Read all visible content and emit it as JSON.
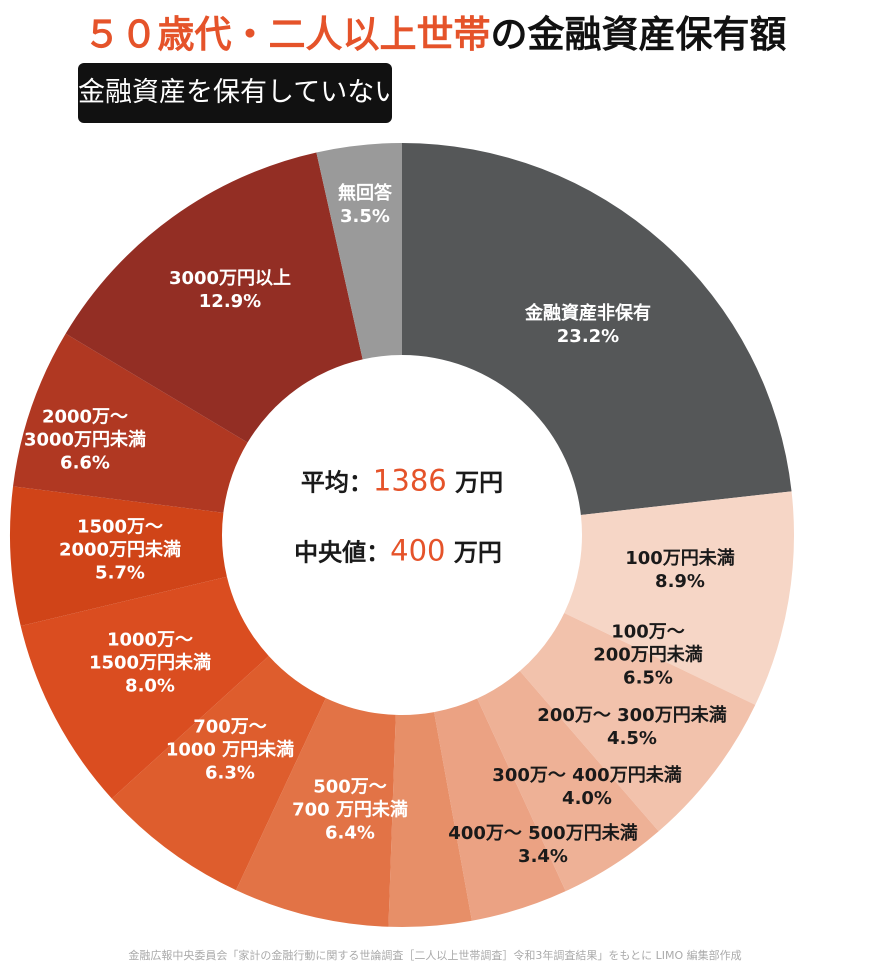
{
  "title": {
    "highlight": "５０歳代・二人以上世帯",
    "rest": "の金融資産保有額"
  },
  "subtitle": "金融資産を保有していない世帯を含む",
  "center": {
    "mean_label": "平均：",
    "mean_value": "1386",
    "mean_unit": " 万円",
    "median_label": "中央値：",
    "median_value": "400",
    "median_unit": " 万円"
  },
  "source": "金融広報中央委員会「家計の金融行動に関する世論調査［二人以上世帯調査］令和3年調査結果」をもとに LIMO 編集部作成",
  "chart_data": {
    "type": "pie",
    "donut": true,
    "start": "top",
    "direction": "clockwise",
    "unit": "%",
    "categories": [
      "金融資産非保有",
      "100万円未満",
      "100万～200万円未満",
      "200万～300万円未満",
      "300万～400万円未満",
      "400万～500万円未満",
      "500万～700万円未満",
      "700万～1000万円未満",
      "1000万～1500万円未満",
      "1500万～2000万円未満",
      "2000万～3000万円未満",
      "3000万円以上",
      "無回答"
    ],
    "values": [
      23.2,
      8.9,
      6.5,
      4.5,
      4.0,
      3.4,
      6.4,
      6.3,
      8.0,
      5.7,
      6.6,
      12.9,
      3.5
    ],
    "slices": [
      {
        "lines": [
          "金融資産非保有"
        ],
        "pct": "23.2%",
        "color": "#555758",
        "text": "light"
      },
      {
        "lines": [
          "100万円未満"
        ],
        "pct": "8.9%",
        "color": "#f6d6c6",
        "text": "dark"
      },
      {
        "lines": [
          "100万～",
          "200万円未満"
        ],
        "pct": "6.5%",
        "color": "#f2c2ac",
        "text": "dark"
      },
      {
        "lines": [
          "200万～ 300万円未満"
        ],
        "pct": "4.5%",
        "color": "#eeb196",
        "text": "dark"
      },
      {
        "lines": [
          "300万～ 400万円未満"
        ],
        "pct": "4.0%",
        "color": "#eba283",
        "text": "dark"
      },
      {
        "lines": [
          "400万～ 500万円未満"
        ],
        "pct": "3.4%",
        "color": "#e78f68",
        "text": "dark"
      },
      {
        "lines": [
          "500万～",
          "700 万円未満"
        ],
        "pct": "6.4%",
        "color": "#e27346",
        "text": "light"
      },
      {
        "lines": [
          "700万～",
          "1000 万円未満"
        ],
        "pct": "6.3%",
        "color": "#de5d2d",
        "text": "light"
      },
      {
        "lines": [
          "1000万～",
          "1500万円未満"
        ],
        "pct": "8.0%",
        "color": "#da4d20",
        "text": "light"
      },
      {
        "lines": [
          "1500万～",
          "2000万円未満"
        ],
        "pct": "5.7%",
        "color": "#d04418",
        "text": "light"
      },
      {
        "lines": [
          "2000万～",
          "3000万円未満"
        ],
        "pct": "6.6%",
        "color": "#b03822",
        "text": "light"
      },
      {
        "lines": [
          "3000万円以上"
        ],
        "pct": "12.9%",
        "color": "#932e24",
        "text": "light"
      },
      {
        "lines": [
          "無回答"
        ],
        "pct": "3.5%",
        "color": "#9a9a9a",
        "text": "light"
      }
    ]
  }
}
